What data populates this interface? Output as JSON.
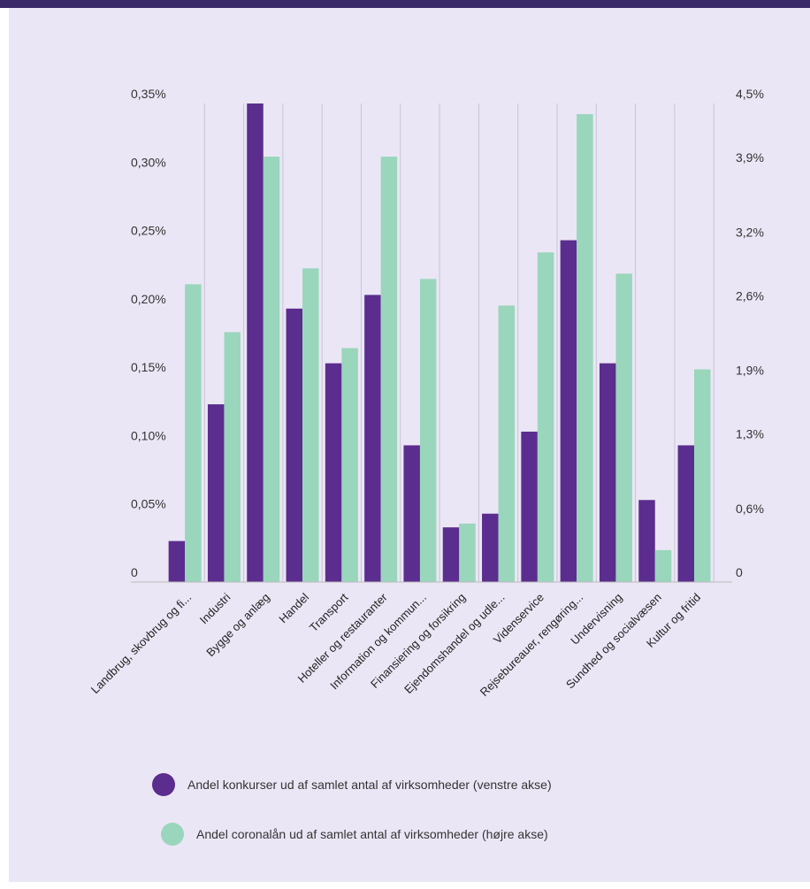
{
  "chart_data": {
    "type": "bar",
    "categories": [
      "Landbrug, skovbrug og fi...",
      "Industri",
      "Bygge og anlæg",
      "Handel",
      "Transport",
      "Hoteller og restauranter",
      "Information og kommun...",
      "Finansiering og forsikring",
      "Ejendomshandel og udle...",
      "Videnservice",
      "Rejsebureauer, rengøring...",
      "Undervisning",
      "Sundhed og socialvæsen",
      "Kultur og fritid"
    ],
    "series": [
      {
        "name": "Andel konkurser ud af samlet antal af virksomheder (venstre akse)",
        "axis": "left",
        "color": "#5b2d8e",
        "values": [
          0.03,
          0.13,
          0.35,
          0.2,
          0.16,
          0.21,
          0.1,
          0.04,
          0.05,
          0.11,
          0.25,
          0.16,
          0.06,
          0.1
        ]
      },
      {
        "name": "Andel coronalån ud af samlet antal af virksomheder (højre akse)",
        "axis": "right",
        "color": "#99d6bc",
        "values": [
          2.8,
          2.35,
          4.0,
          2.95,
          2.2,
          4.0,
          2.85,
          0.55,
          2.6,
          3.1,
          4.4,
          2.9,
          0.3,
          2.0
        ]
      }
    ],
    "left_axis": {
      "ylim": [
        0,
        0.35
      ],
      "ticks": [
        0,
        0.05,
        0.1,
        0.15,
        0.2,
        0.25,
        0.3,
        0.35
      ],
      "tick_labels": [
        "0",
        "0,05%",
        "0,10%",
        "0,15%",
        "0,20%",
        "0,25%",
        "0,30%",
        "0,35%"
      ]
    },
    "right_axis": {
      "ylim": [
        0,
        4.5
      ],
      "ticks": [
        0,
        0.6,
        1.3,
        1.9,
        2.6,
        3.2,
        3.9,
        4.5
      ],
      "tick_labels": [
        "0",
        "0,6%",
        "1,3%",
        "1,9%",
        "2,6%",
        "3,2%",
        "3,9%",
        "4,5%"
      ]
    },
    "title": "",
    "xlabel": "",
    "grid": "vertical",
    "legend": "bottom"
  }
}
